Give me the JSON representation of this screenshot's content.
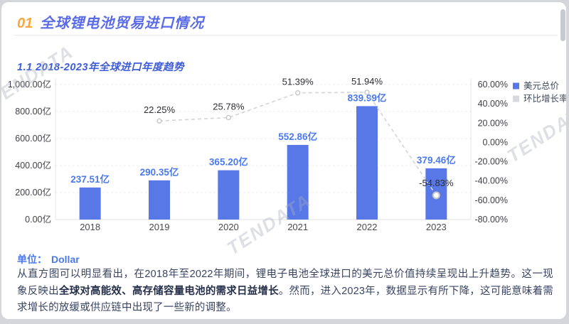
{
  "page": {
    "header": {
      "number": "01",
      "title": "全球锂电池贸易进口情况"
    },
    "section_title": "1.1 2018-2023年全球进口年度趋势",
    "unit_label": "单位：",
    "unit_value": "Dollar",
    "paragraph": {
      "part1": "从直方图可以明显看出，在2018年至2022年期间，锂电子电池全球进口的美元总价值持续呈现出上升趋势。这一现象反映出",
      "bold": "全球对高能效、高存储容量电池的需求日益增长",
      "part2": "。然而，进入2023年，数据显示有所下降，这可能意味着需求增长的放缓或供应链中出现了一些新的调整。"
    },
    "watermark": "TENDATA"
  },
  "colors": {
    "accent_orange": "#f7a73f",
    "title_blue": "#5a6be8",
    "bar_blue": "#5878e8",
    "value_label_blue": "#4a79f0",
    "growth_line_gray": "#d3d4d8",
    "axis_text": "#3f3f46",
    "percent_label": "#2e2e33"
  },
  "chart_data": {
    "type": "bar",
    "title": "1.1 2018-2023年全球进口年度趋势",
    "categories": [
      "2018",
      "2019",
      "2020",
      "2021",
      "2022",
      "2023"
    ],
    "series": [
      {
        "name": "美元总价",
        "type": "bar",
        "color": "#5878e8",
        "values": [
          237.51,
          290.35,
          365.2,
          552.86,
          839.99,
          379.46
        ],
        "labels": [
          "237.51亿",
          "290.35亿",
          "365.20亿",
          "552.86亿",
          "839.99亿",
          "379.46亿"
        ]
      },
      {
        "name": "环比增长率",
        "type": "line",
        "color": "#d3d4d8",
        "marker_stroke": "#c4c6cb",
        "values": [
          null,
          22.25,
          25.78,
          51.39,
          51.94,
          -54.83
        ],
        "labels": [
          null,
          "22.25%",
          "25.78%",
          "51.39%",
          "51.94%",
          "-54.83%"
        ]
      }
    ],
    "left_axis": {
      "min": 0,
      "max": 1000,
      "ticks": [
        "1,000.00亿",
        "800.00亿",
        "600.00亿",
        "400.00亿",
        "200.00亿",
        "0.00亿"
      ]
    },
    "right_axis": {
      "min": -80,
      "max": 60,
      "ticks": [
        "60.00%",
        "40.00%",
        "20.00%",
        "0.00%",
        "-20.00%",
        "-40.00%",
        "-60.00%",
        "-80.00%"
      ]
    },
    "legend": [
      {
        "label": "美元总价",
        "color": "#5878e8"
      },
      {
        "label": "环比增长率",
        "color": "#d8d9dd"
      }
    ],
    "grid": true,
    "legend_position": "top-right"
  }
}
